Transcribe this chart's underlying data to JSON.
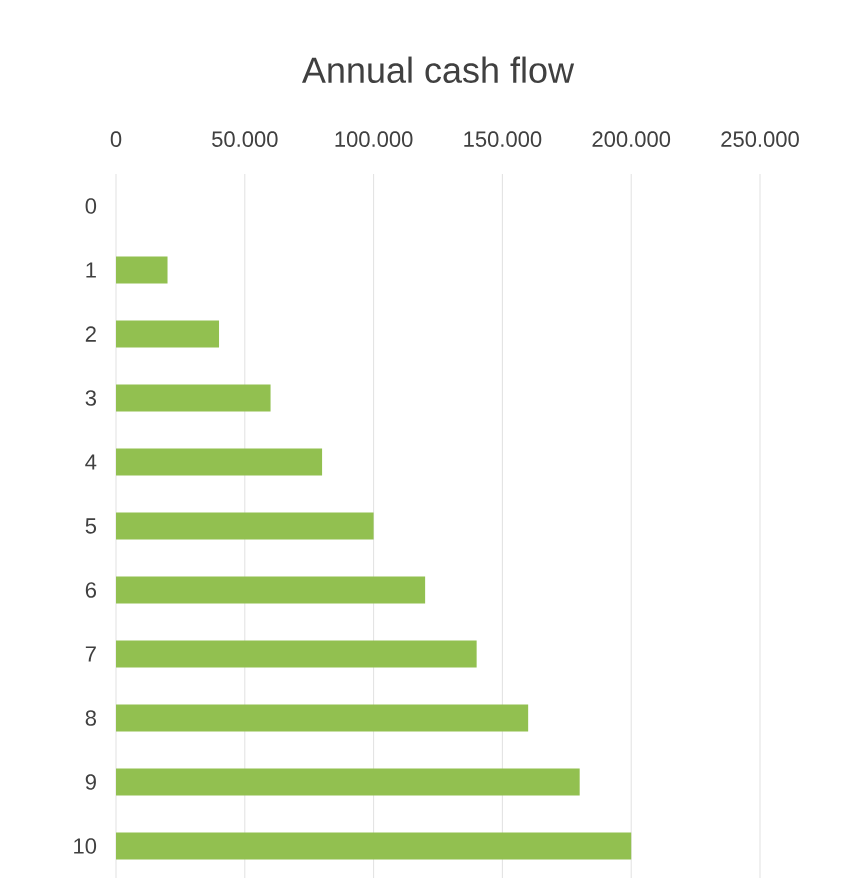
{
  "chart_data": {
    "type": "bar",
    "orientation": "horizontal",
    "title": "Annual cash flow",
    "categories": [
      "0",
      "1",
      "2",
      "3",
      "4",
      "5",
      "6",
      "7",
      "8",
      "9",
      "10"
    ],
    "values": [
      0,
      20000,
      40000,
      60000,
      80000,
      100000,
      120000,
      140000,
      160000,
      180000,
      200000
    ],
    "color": "#92c050",
    "xlim": [
      0,
      250000
    ],
    "xticks": [
      0,
      {
        "value": 50000,
        "label": "50.000"
      },
      {
        "value": 100000,
        "label": "100.000"
      },
      {
        "value": 150000,
        "label": "150.000"
      },
      {
        "value": 200000,
        "label": "200.000"
      },
      {
        "value": 250000,
        "label": "250.000"
      }
    ],
    "grid": "x"
  }
}
